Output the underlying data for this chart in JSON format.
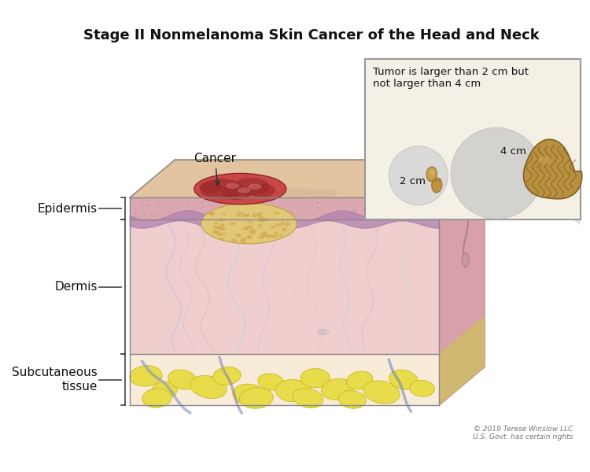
{
  "title": "Stage II Nonmelanoma Skin Cancer of the Head and Neck",
  "title_fontsize": 13,
  "title_fontweight": "bold",
  "background_color": "#ffffff",
  "inset_title": "Tumor is larger than 2 cm but\nnot larger than 4 cm",
  "inset_label_2cm": "2 cm",
  "inset_label_4cm": "4 cm",
  "label_cancer": "Cancer",
  "label_epidermis": "Epidermis",
  "label_dermis": "Dermis",
  "label_subcutaneous": "Subcutaneous\ntissue",
  "copyright": "© 2019 Terese Winslow LLC\nU.S. Govt. has certain rights",
  "inset_bg": "#f5f0e5",
  "inset_border": "#999999",
  "circle_2cm_color": "#d5d5d5",
  "circle_4cm_color": "#c8c8c8",
  "label_fontsize": 11,
  "bracket_color": "#444444",
  "epidermis_front": "#dba8b0",
  "dermis_front": "#f0cece",
  "subcut_front": "#f8ecd8",
  "top_surface": "#e0bfa0",
  "right_epi": "#c89098",
  "right_derm": "#d8a0a8",
  "right_subcut": "#c8b880",
  "right_overall": "#c89898"
}
